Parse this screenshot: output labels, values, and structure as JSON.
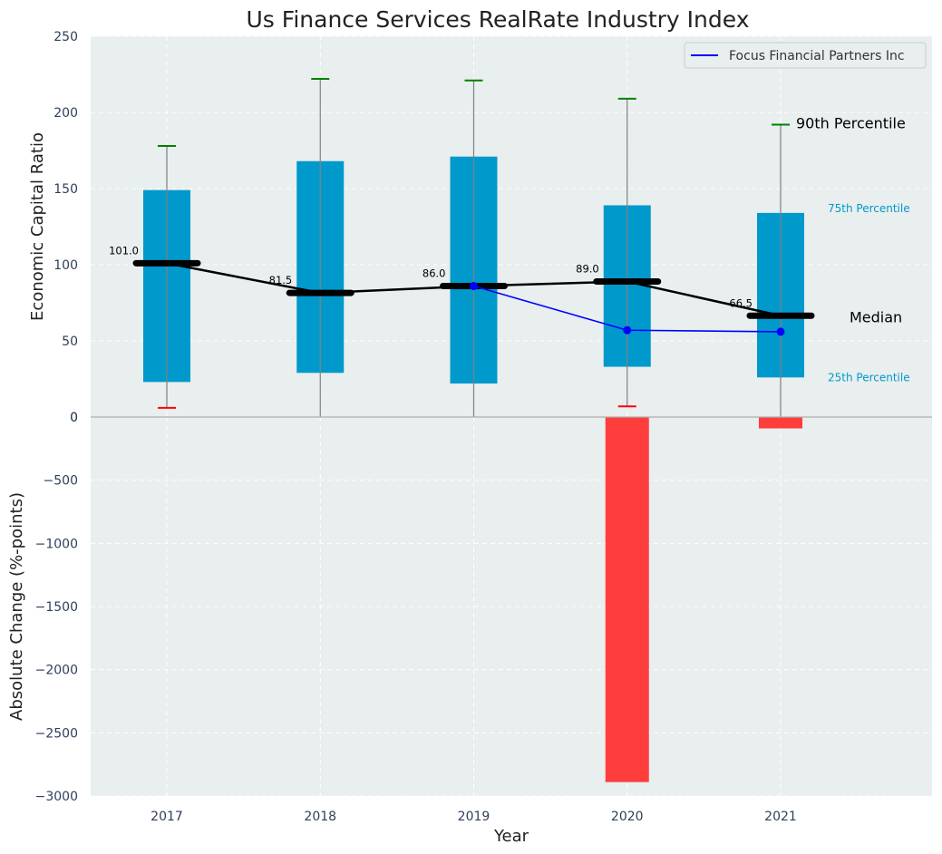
{
  "chart_data": [
    {
      "type": "box",
      "title": "Us Finance Services RealRate Industry Index",
      "ylabel": "Economic Capital Ratio",
      "ylim": [
        0,
        250
      ],
      "yticks": [
        0,
        50,
        100,
        150,
        200,
        250
      ],
      "grid": true,
      "legend": {
        "position": "top-right",
        "entries": [
          "Focus Financial Partners Inc"
        ]
      },
      "categories": [
        "2017",
        "2018",
        "2019",
        "2020",
        "2021"
      ],
      "p25": [
        23,
        29,
        22,
        33,
        26
      ],
      "p75": [
        149,
        168,
        171,
        139,
        134
      ],
      "p10": [
        6,
        null,
        null,
        7,
        null
      ],
      "p90": [
        178,
        222,
        221,
        209,
        192
      ],
      "median": [
        101.0,
        81.5,
        86.0,
        89.0,
        66.5
      ],
      "median_labels": [
        "101.0",
        "81.5",
        "86.0",
        "89.0",
        "66.5"
      ],
      "series": [
        {
          "name": "Focus Financial Partners Inc",
          "color": "#0000ff",
          "x": [
            "2019",
            "2020",
            "2021"
          ],
          "values": [
            86,
            57,
            56
          ]
        }
      ],
      "annotations": {
        "p90": "90th Percentile",
        "p75": "75th Percentile",
        "median": "Median",
        "p25": "25th Percentile"
      },
      "colors": {
        "box": "#0099cc",
        "median": "#000000",
        "p90": "#008000",
        "p10": "#ff0000",
        "background": "#e9eeee"
      }
    },
    {
      "type": "bar",
      "ylabel": "Absolute Change (%-points)",
      "xlabel": "Year",
      "categories": [
        "2017",
        "2018",
        "2019",
        "2020",
        "2021"
      ],
      "values": [
        0,
        0,
        0,
        -2890,
        -90
      ],
      "ylim": [
        -3000,
        0
      ],
      "yticks": [
        -3000,
        -2500,
        -2000,
        -1500,
        -1000,
        -500,
        0
      ],
      "ytick_labels": [
        "−3000",
        "−2500",
        "−2000",
        "−1500",
        "−1000",
        "−500",
        "0"
      ],
      "color": "#ff3333",
      "grid": true
    }
  ]
}
